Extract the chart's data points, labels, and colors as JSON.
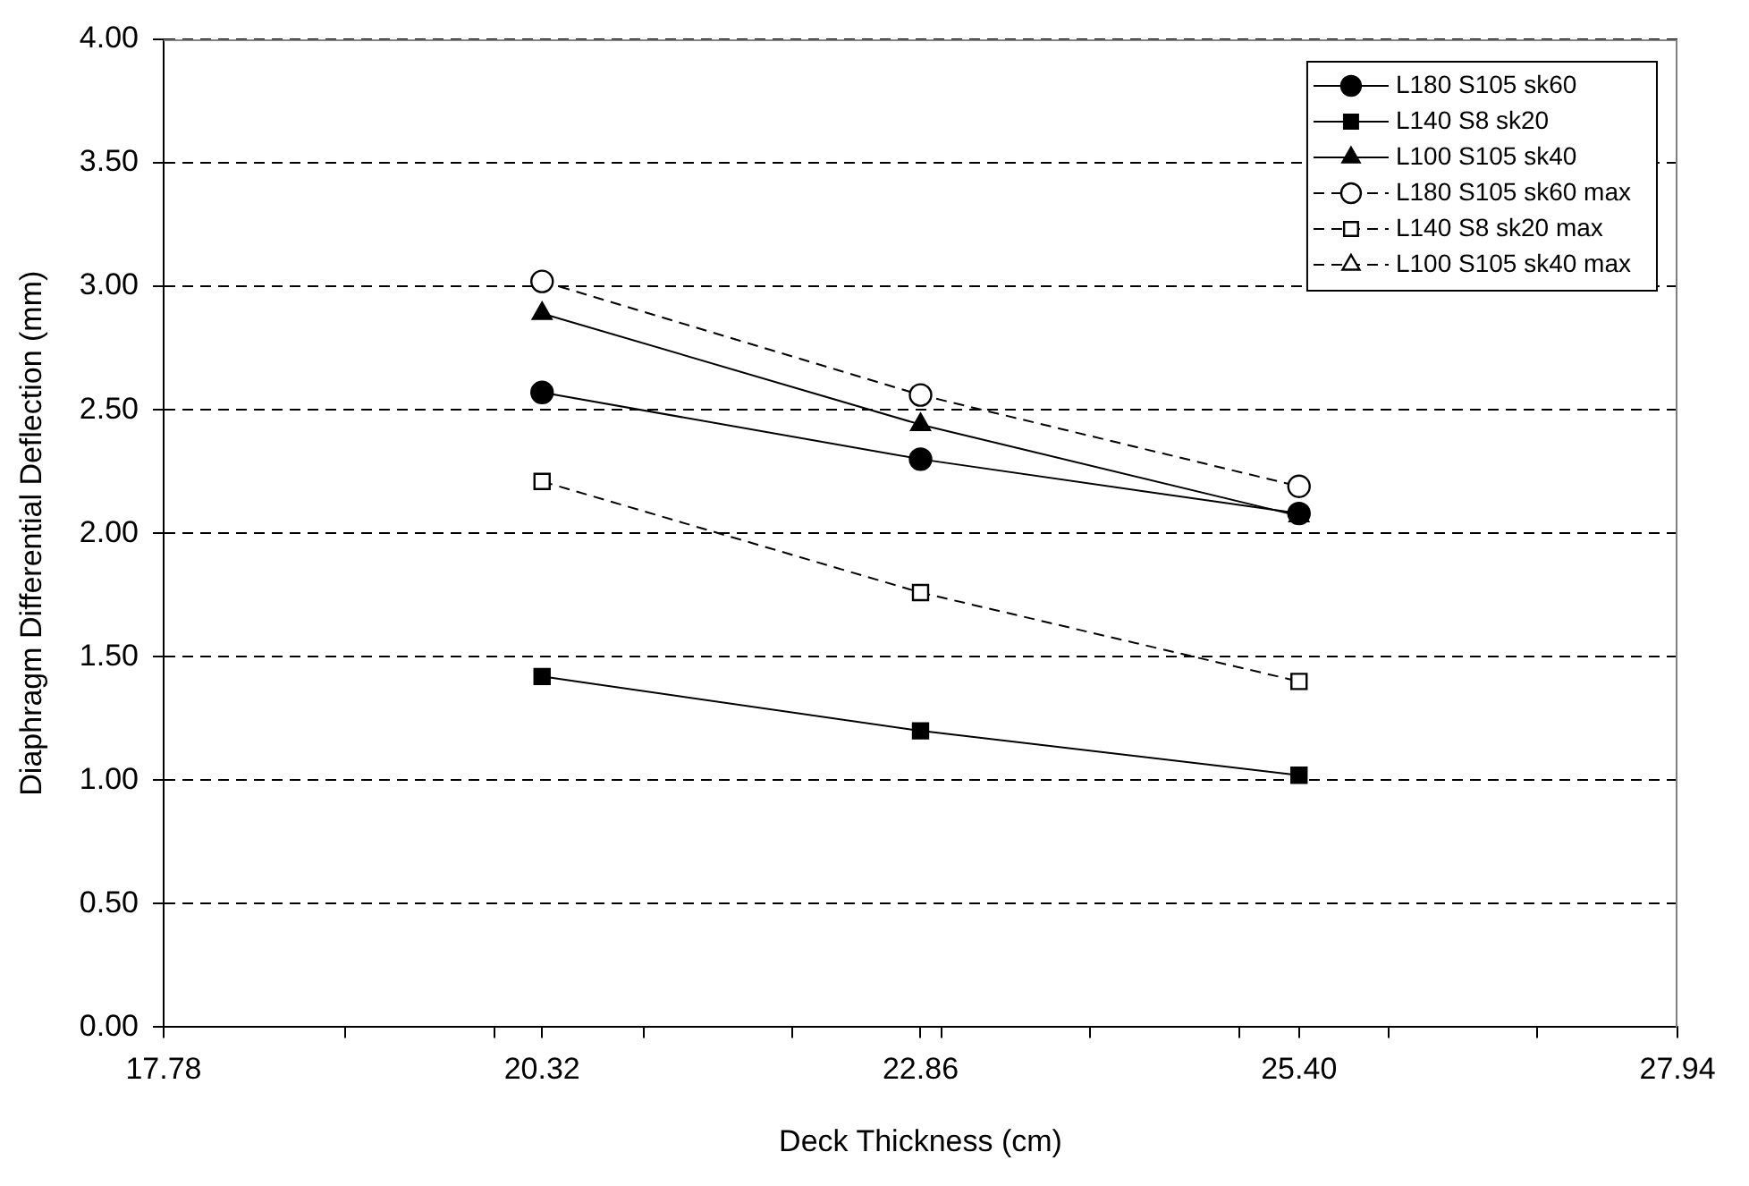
{
  "chart_data": {
    "type": "line",
    "xlabel": "Deck Thickness (cm)",
    "ylabel": "Diaphragm Differential Deflection (mm)",
    "x": [
      20.32,
      22.86,
      25.4
    ],
    "series": [
      {
        "name": "L180 S105 sk60",
        "color": "#000000",
        "marker": "circle",
        "line_style": "solid",
        "values": [
          2.57,
          2.3,
          2.08
        ]
      },
      {
        "name": "L140 S8 sk20",
        "color": "#000000",
        "marker": "square",
        "line_style": "solid",
        "values": [
          1.42,
          1.2,
          1.02
        ]
      },
      {
        "name": "L100 S105 sk40",
        "color": "#000000",
        "marker": "triangle",
        "line_style": "solid",
        "values": [
          2.89,
          2.44,
          2.07
        ]
      },
      {
        "name": "L180 S105 sk60 max",
        "color": "#000000",
        "marker": "circle",
        "line_style": "dashed",
        "values": [
          3.02,
          2.56,
          2.19
        ]
      },
      {
        "name": "L140 S8 sk20 max",
        "color": "#000000",
        "marker": "square",
        "line_style": "dashed",
        "values": [
          2.21,
          1.76,
          1.4
        ]
      },
      {
        "name": "L100 S105 sk40 max",
        "color": "#000000",
        "marker": "triangle",
        "line_style": "dashed",
        "values": [
          null,
          null,
          null
        ]
      }
    ],
    "xlim": [
      17.78,
      27.94
    ],
    "xticks": [
      17.78,
      {
        "value": 19,
        "label": null
      },
      {
        "value": 20,
        "label": null
      },
      20.32,
      {
        "value": 21,
        "label": null
      },
      {
        "value": 22,
        "label": null
      },
      22.86,
      {
        "value": 23,
        "label": null
      },
      {
        "value": 24,
        "label": null
      },
      {
        "value": 25,
        "label": null
      },
      {
        "value": 25.4,
        "label": "25.40"
      },
      {
        "value": 26,
        "label": null
      },
      {
        "value": 27,
        "label": null
      },
      27.94
    ],
    "ylim": [
      0,
      4
    ],
    "yticks": [
      {
        "value": 0,
        "label": "0.00"
      },
      {
        "value": 0.5,
        "label": "0.50"
      },
      {
        "value": 1,
        "label": "1.00"
      },
      {
        "value": 1.5,
        "label": "1.50"
      },
      {
        "value": 2,
        "label": "2.00"
      },
      {
        "value": 2.5,
        "label": "2.50"
      },
      {
        "value": 3,
        "label": "3.00"
      },
      {
        "value": 3.5,
        "label": "3.50"
      },
      {
        "value": 4,
        "label": "4.00"
      }
    ],
    "grid": "y",
    "legend": "top right"
  }
}
